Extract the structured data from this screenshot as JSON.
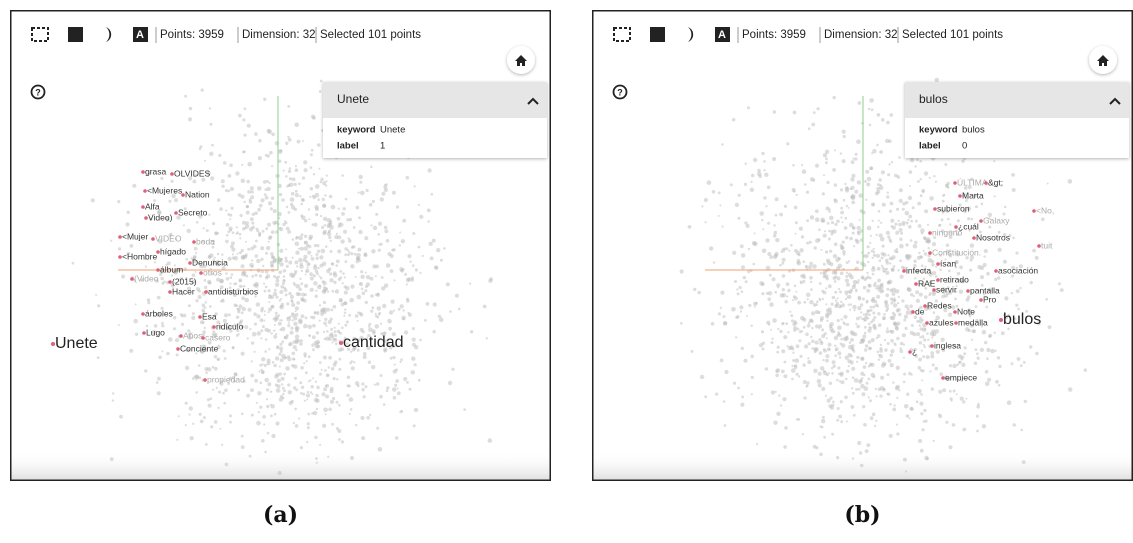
{
  "panels": [
    {
      "toolbar": {
        "points": "Points: 3959",
        "dimension": "Dimension: 32",
        "selected": "Selected 101 points"
      },
      "card": {
        "title": "Unete",
        "rows": [
          {
            "key": "keyword",
            "value": "Unete"
          },
          {
            "key": "label",
            "value": "1"
          }
        ]
      },
      "labels": [
        "grasa",
        "OLVIDES",
        "<Mujeres",
        "Nation",
        "Alfa",
        "Secreto",
        "Video)",
        "<Mujer",
        "VIDEO",
        "boda",
        "hígado",
        "<Hombre",
        "Denuncia",
        "álbum",
        "otros",
        "(Video",
        "(2015)",
        "Hacer",
        "antidisturbios",
        "árboles",
        "Esa",
        "ridículo",
        "Lugo",
        "Años",
        "casero",
        "Conciente",
        "propiedad"
      ],
      "big_labels": [
        "Unete",
        "cantidad"
      ],
      "caption": "(a)"
    },
    {
      "toolbar": {
        "points": "Points: 3959",
        "dimension": "Dimension: 32",
        "selected": "Selected 101 points"
      },
      "card": {
        "title": "bulos",
        "rows": [
          {
            "key": "keyword",
            "value": "bulos"
          },
          {
            "key": "label",
            "value": "0"
          }
        ]
      },
      "labels": [
        "ÚLTIMA",
        "&gt;",
        "Marta",
        "subieron",
        "Galaxy",
        "<No,",
        "¿cuál",
        "ninguno",
        "Nosotros",
        "tuit",
        "Constitución.",
        "ísan",
        "infecta",
        "asociación",
        "retirado",
        "RAE",
        "servir",
        "pantalla",
        "Pro",
        "Redes",
        "de",
        "Note",
        "azules",
        "medalla",
        "inglesa",
        "¿",
        "empiece"
      ],
      "big_labels": [
        "bulos"
      ],
      "caption": "(b)"
    }
  ]
}
